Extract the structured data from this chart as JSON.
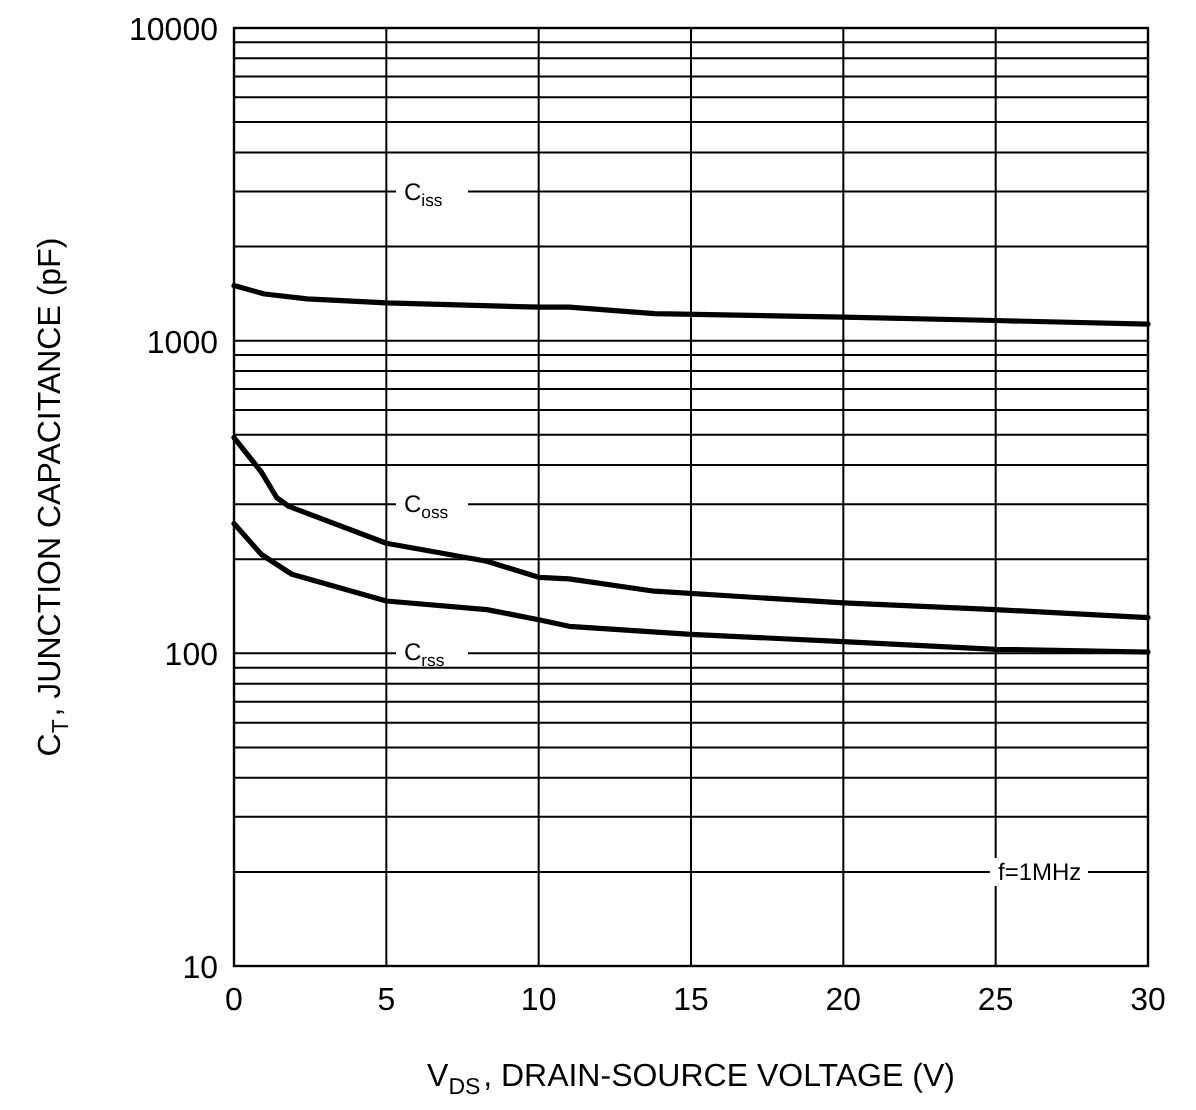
{
  "chart_data": {
    "type": "line",
    "xlabel": "V$_{DS}$, DRAIN-SOURCE VOLTAGE (V)",
    "ylabel": "C$_{T}$, JUNCTION CAPACITANCE (pF)",
    "log": "y",
    "grid": true,
    "marker": "none",
    "line_style": "solid",
    "xlim": [
      0,
      30
    ],
    "xticks": [
      0,
      5,
      10,
      15,
      20,
      25,
      30
    ],
    "ylim": [
      10,
      10000
    ],
    "yticks": [
      10,
      {
        "value": 20,
        "label": null
      },
      {
        "value": 30,
        "label": null
      },
      {
        "value": 40,
        "label": null
      },
      {
        "value": 50,
        "label": null
      },
      {
        "value": 60,
        "label": null
      },
      {
        "value": 70,
        "label": null
      },
      {
        "value": 80,
        "label": null
      },
      {
        "value": 90,
        "label": null
      },
      100,
      {
        "value": 200,
        "label": null
      },
      {
        "value": 300,
        "label": null
      },
      {
        "value": 400,
        "label": null
      },
      {
        "value": 500,
        "label": null
      },
      {
        "value": 600,
        "label": null
      },
      {
        "value": 700,
        "label": null
      },
      {
        "value": 800,
        "label": null
      },
      {
        "value": 900,
        "label": null
      },
      1000,
      {
        "value": 2000,
        "label": null
      },
      {
        "value": 3000,
        "label": null
      },
      {
        "value": 4000,
        "label": null
      },
      {
        "value": 5000,
        "label": null
      },
      {
        "value": 6000,
        "label": null
      },
      {
        "value": 7000,
        "label": null
      },
      {
        "value": 8000,
        "label": null
      },
      {
        "value": 9000,
        "label": null
      },
      10000
    ],
    "series": [
      {
        "color": "#000000",
        "x": [
          0,
          1,
          2.4,
          5,
          10,
          11,
          13.8,
          20,
          25,
          30
        ],
        "values": [
          1500,
          1410,
          1360,
          1320,
          1280,
          1280,
          1220,
          1190,
          1160,
          1130
        ]
      },
      {
        "color": "#000000",
        "x": [
          0,
          0.9,
          1.4,
          1.8,
          5,
          8.3,
          10,
          11,
          13.8,
          20,
          25,
          30
        ],
        "values": [
          490,
          380,
          315,
          295,
          225,
          197,
          175,
          173,
          158,
          145,
          138,
          130
        ]
      },
      {
        "color": "#000000",
        "x": [
          0,
          0.9,
          1.9,
          5,
          8.3,
          10,
          11,
          15,
          20,
          25,
          30
        ],
        "values": [
          260,
          207,
          179,
          147,
          138,
          128,
          122,
          115,
          109,
          103,
          101
        ]
      }
    ],
    "annotations": [
      "C$_{iss}$",
      "C$_{oss}$",
      "C$_{rss}$",
      "f=1MHz"
    ]
  }
}
